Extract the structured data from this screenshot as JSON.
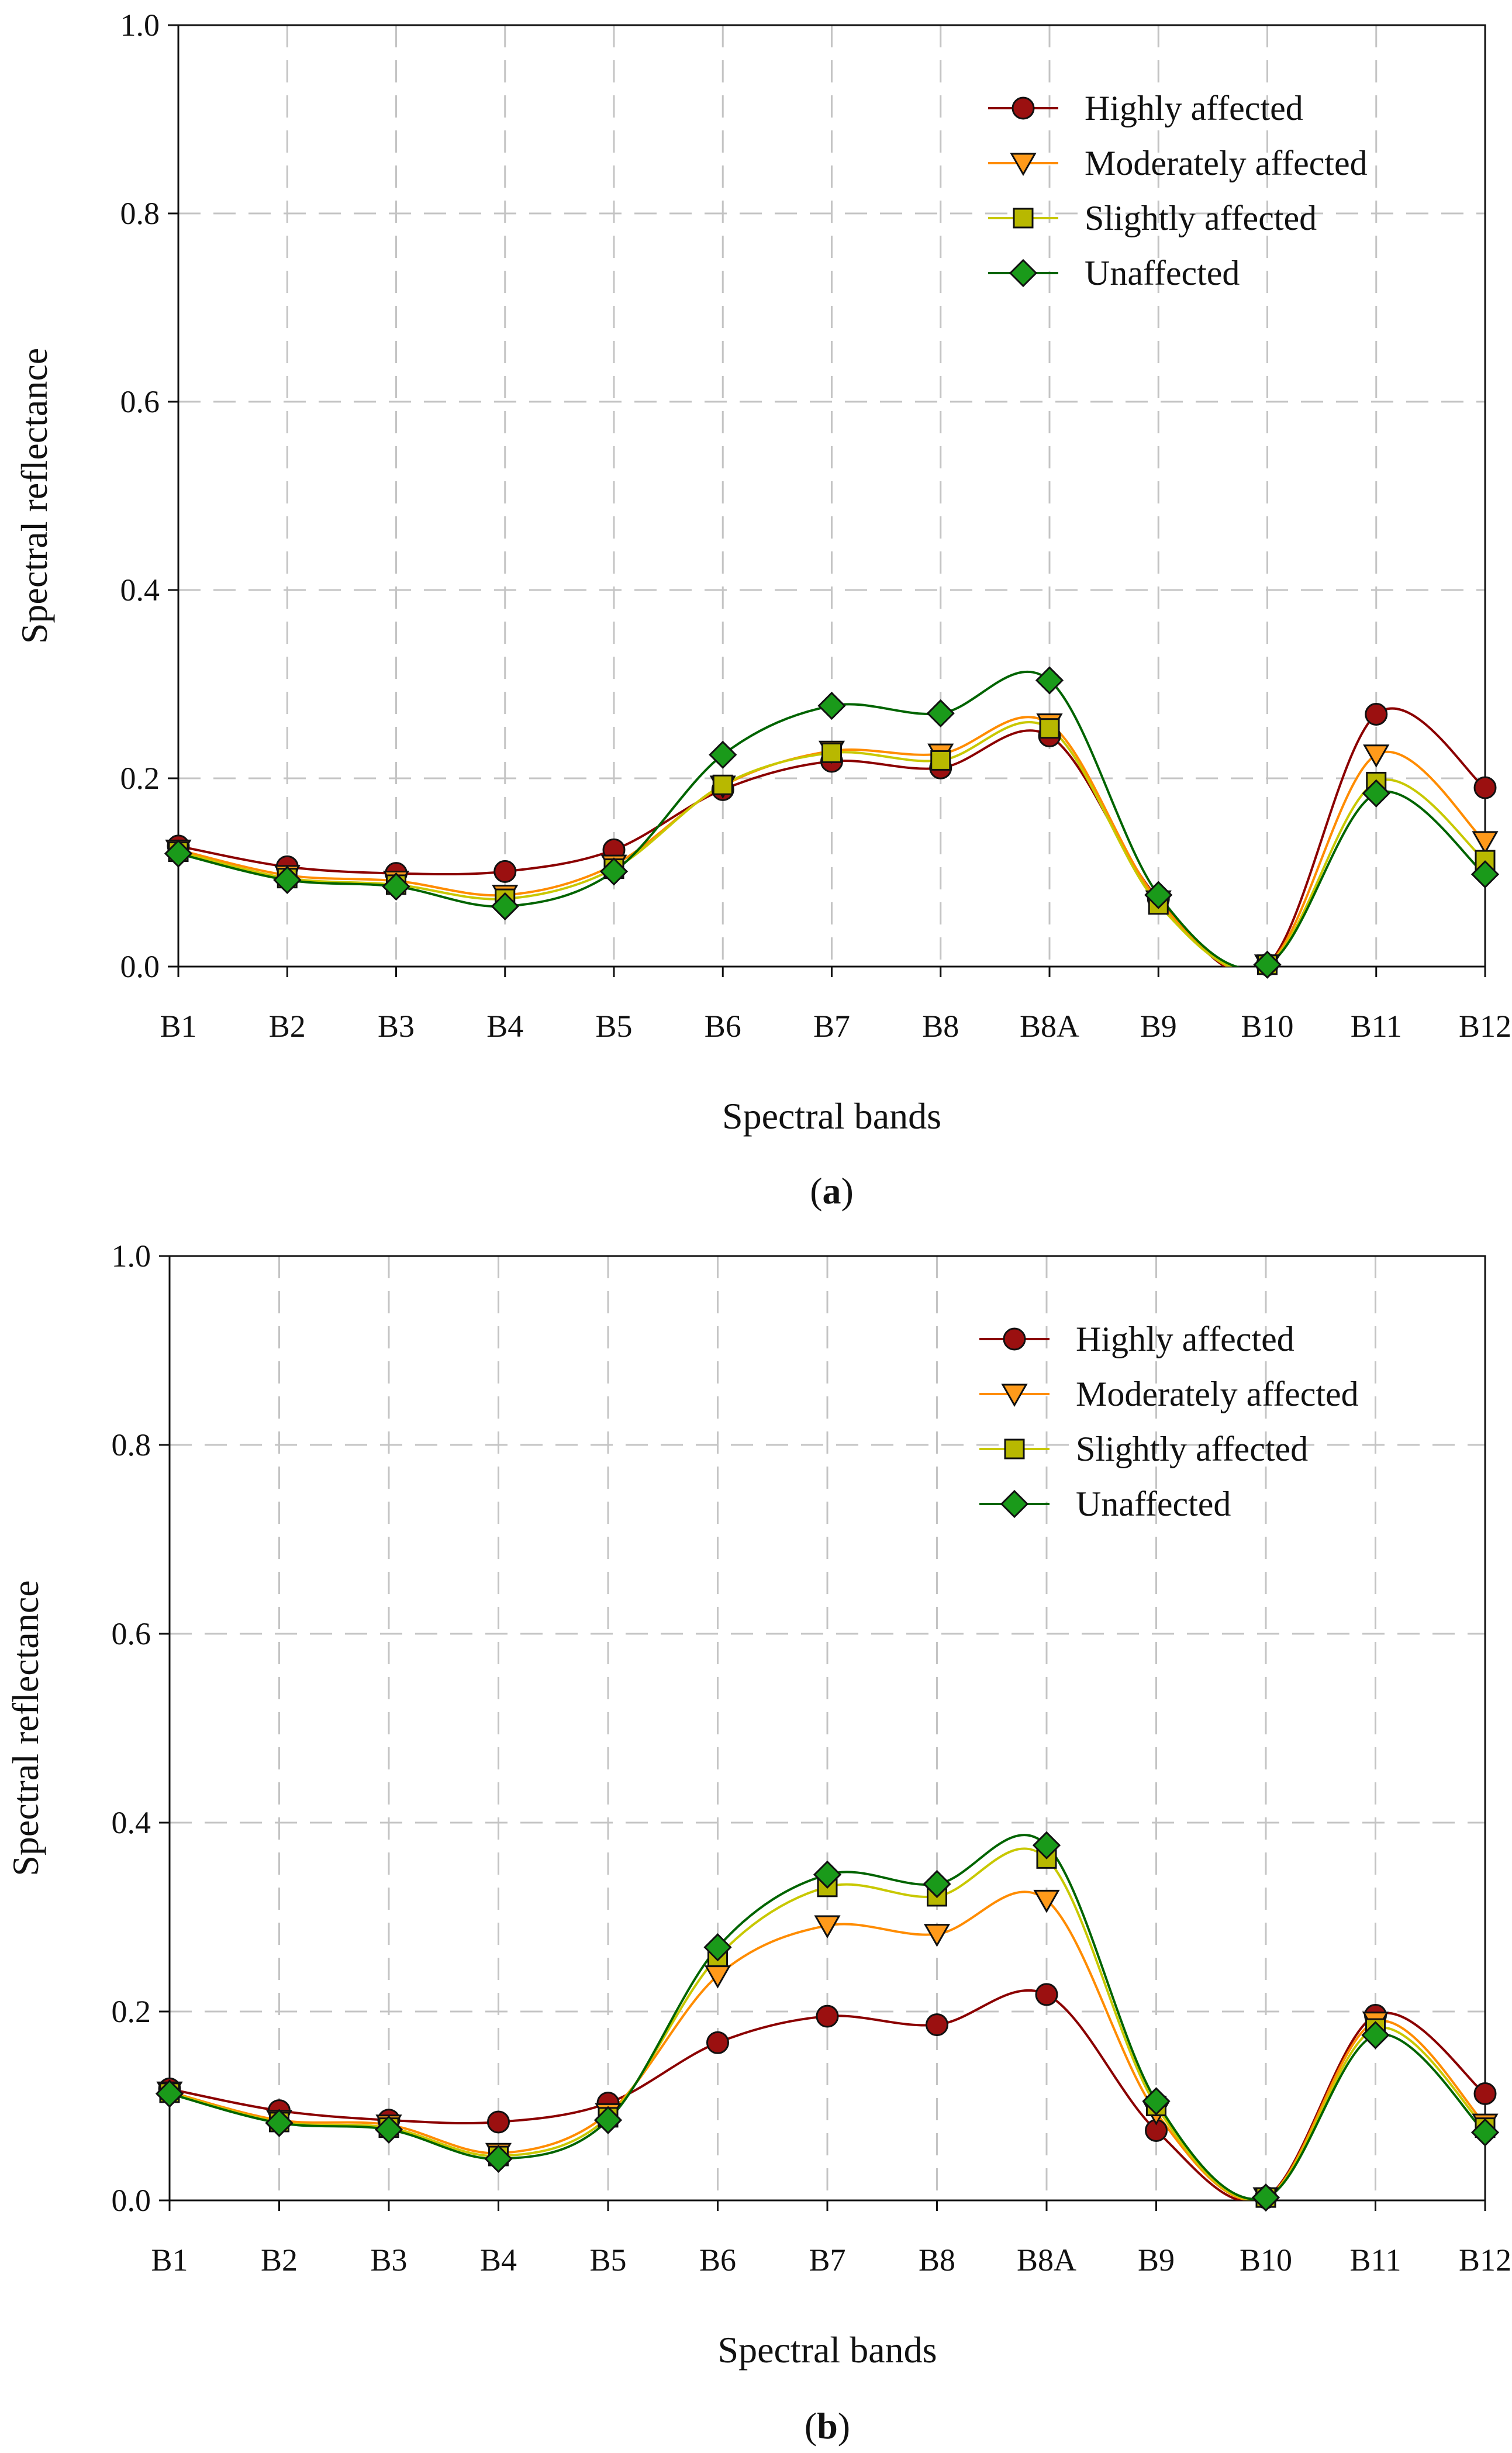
{
  "chart_data": [
    {
      "type": "line",
      "panel_label": "a",
      "xlabel": "Spectral bands",
      "ylabel": "Spectral reflectance",
      "ylim": [
        0,
        1.0
      ],
      "yticks": [
        "0.0",
        "0.2",
        "0.4",
        "0.6",
        "0.8",
        "1.0"
      ],
      "categories": [
        "B1",
        "B2",
        "B3",
        "B4",
        "B5",
        "B6",
        "B7",
        "B8",
        "B8A",
        "B9",
        "B10",
        "B11",
        "B12"
      ],
      "grid": true,
      "legend_position": "top-right",
      "series": [
        {
          "name": "Highly affected",
          "marker": "circle",
          "color": "#8b0000",
          "fill": "#9b1010",
          "values": [
            0.128,
            0.106,
            0.099,
            0.101,
            0.124,
            0.188,
            0.218,
            0.211,
            0.245,
            0.072,
            0.002,
            0.268,
            0.19
          ]
        },
        {
          "name": "Moderately affected",
          "marker": "triangle-down",
          "color": "#ff8c00",
          "fill": "#ff9a1a",
          "values": [
            0.124,
            0.097,
            0.091,
            0.076,
            0.108,
            0.192,
            0.229,
            0.226,
            0.258,
            0.07,
            0.002,
            0.225,
            0.133
          ]
        },
        {
          "name": "Slightly affected",
          "marker": "square",
          "color": "#c8c800",
          "fill": "#b8b800",
          "values": [
            0.122,
            0.094,
            0.087,
            0.072,
            0.104,
            0.193,
            0.227,
            0.219,
            0.253,
            0.066,
            0.002,
            0.196,
            0.113
          ]
        },
        {
          "name": "Unaffected",
          "marker": "diamond",
          "color": "#006400",
          "fill": "#1a9a1a",
          "values": [
            0.12,
            0.092,
            0.085,
            0.064,
            0.101,
            0.225,
            0.277,
            0.269,
            0.304,
            0.076,
            0.002,
            0.184,
            0.098
          ]
        }
      ]
    },
    {
      "type": "line",
      "panel_label": "b",
      "xlabel": "Spectral bands",
      "ylabel": "Spectral reflectance",
      "ylim": [
        0,
        1.0
      ],
      "yticks": [
        "0.0",
        "0.2",
        "0.4",
        "0.6",
        "0.8",
        "1.0"
      ],
      "categories": [
        "B1",
        "B2",
        "B3",
        "B4",
        "B5",
        "B6",
        "B7",
        "B8",
        "B8A",
        "B9",
        "B10",
        "B11",
        "B12"
      ],
      "grid": true,
      "legend_position": "top-right",
      "series": [
        {
          "name": "Highly affected",
          "marker": "circle",
          "color": "#8b0000",
          "fill": "#9b1010",
          "values": [
            0.118,
            0.095,
            0.085,
            0.083,
            0.103,
            0.167,
            0.195,
            0.186,
            0.218,
            0.074,
            0.003,
            0.196,
            0.113
          ]
        },
        {
          "name": "Moderately affected",
          "marker": "triangle-down",
          "color": "#ff8c00",
          "fill": "#ff9a1a",
          "values": [
            0.115,
            0.085,
            0.08,
            0.05,
            0.092,
            0.238,
            0.291,
            0.282,
            0.318,
            0.093,
            0.003,
            0.189,
            0.081
          ]
        },
        {
          "name": "Slightly affected",
          "marker": "square",
          "color": "#c8c800",
          "fill": "#b8b800",
          "values": [
            0.114,
            0.083,
            0.077,
            0.047,
            0.088,
            0.258,
            0.332,
            0.322,
            0.362,
            0.1,
            0.003,
            0.182,
            0.077
          ]
        },
        {
          "name": "Unaffected",
          "marker": "diamond",
          "color": "#006400",
          "fill": "#1a9a1a",
          "values": [
            0.113,
            0.082,
            0.075,
            0.044,
            0.085,
            0.268,
            0.345,
            0.335,
            0.376,
            0.105,
            0.003,
            0.175,
            0.072
          ]
        }
      ]
    }
  ]
}
